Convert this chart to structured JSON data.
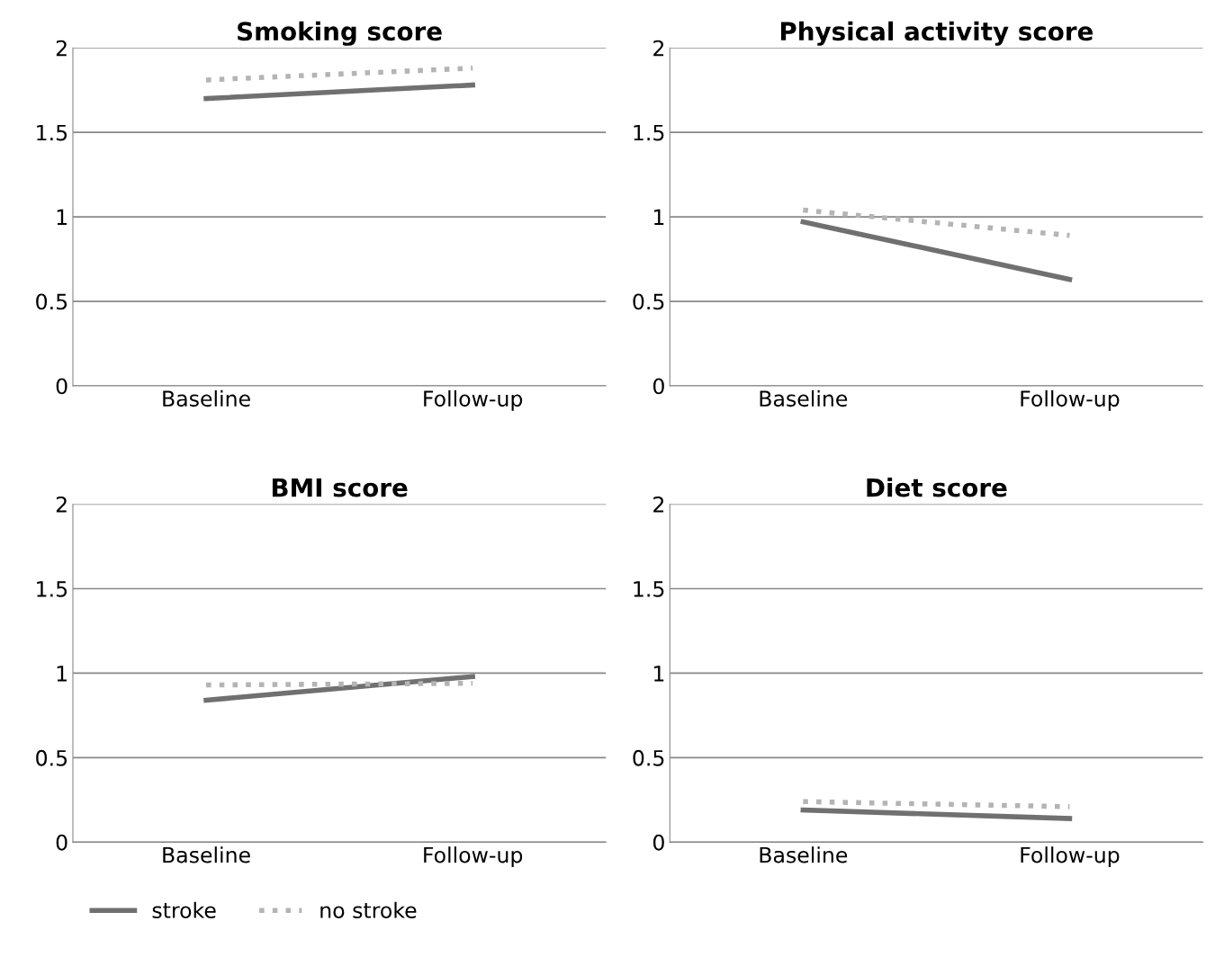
{
  "chart_data": [
    {
      "type": "line",
      "title": "Smoking score",
      "categories": [
        "Baseline",
        "Follow-up"
      ],
      "ylim": [
        0,
        2
      ],
      "yticks": [
        0,
        0.5,
        1,
        1.5,
        2
      ],
      "grid": "y",
      "series": [
        {
          "color": "#707070",
          "line_style": "solid",
          "values": [
            1.7,
            1.78
          ]
        },
        {
          "color": "#b4b4b4",
          "line_style": "dotted",
          "values": [
            1.81,
            1.88
          ]
        }
      ]
    },
    {
      "type": "line",
      "title": "Physical activity score",
      "categories": [
        "Baseline",
        "Follow-up"
      ],
      "ylim": [
        0,
        2
      ],
      "yticks": [
        0,
        0.5,
        1,
        1.5,
        2
      ],
      "grid": "y",
      "series": [
        {
          "color": "#707070",
          "line_style": "solid",
          "values": [
            0.97,
            0.63
          ]
        },
        {
          "color": "#b4b4b4",
          "line_style": "dotted",
          "values": [
            1.04,
            0.89
          ]
        }
      ]
    },
    {
      "type": "line",
      "title": "BMI score",
      "categories": [
        "Baseline",
        "Follow-up"
      ],
      "ylim": [
        0,
        2
      ],
      "yticks": [
        0,
        0.5,
        1,
        1.5,
        2
      ],
      "grid": "y",
      "legend": "bottom",
      "series": [
        {
          "name": "stroke",
          "color": "#707070",
          "line_style": "solid",
          "values": [
            0.84,
            0.98
          ]
        },
        {
          "name": "no stroke",
          "color": "#b4b4b4",
          "line_style": "dotted",
          "values": [
            0.93,
            0.94
          ]
        }
      ]
    },
    {
      "type": "line",
      "title": "Diet score",
      "categories": [
        "Baseline",
        "Follow-up"
      ],
      "ylim": [
        0,
        2
      ],
      "yticks": [
        0,
        0.5,
        1,
        1.5,
        2
      ],
      "grid": "y",
      "series": [
        {
          "color": "#707070",
          "line_style": "solid",
          "values": [
            0.19,
            0.14
          ]
        },
        {
          "color": "#b4b4b4",
          "line_style": "dotted",
          "values": [
            0.24,
            0.21
          ]
        }
      ]
    }
  ]
}
